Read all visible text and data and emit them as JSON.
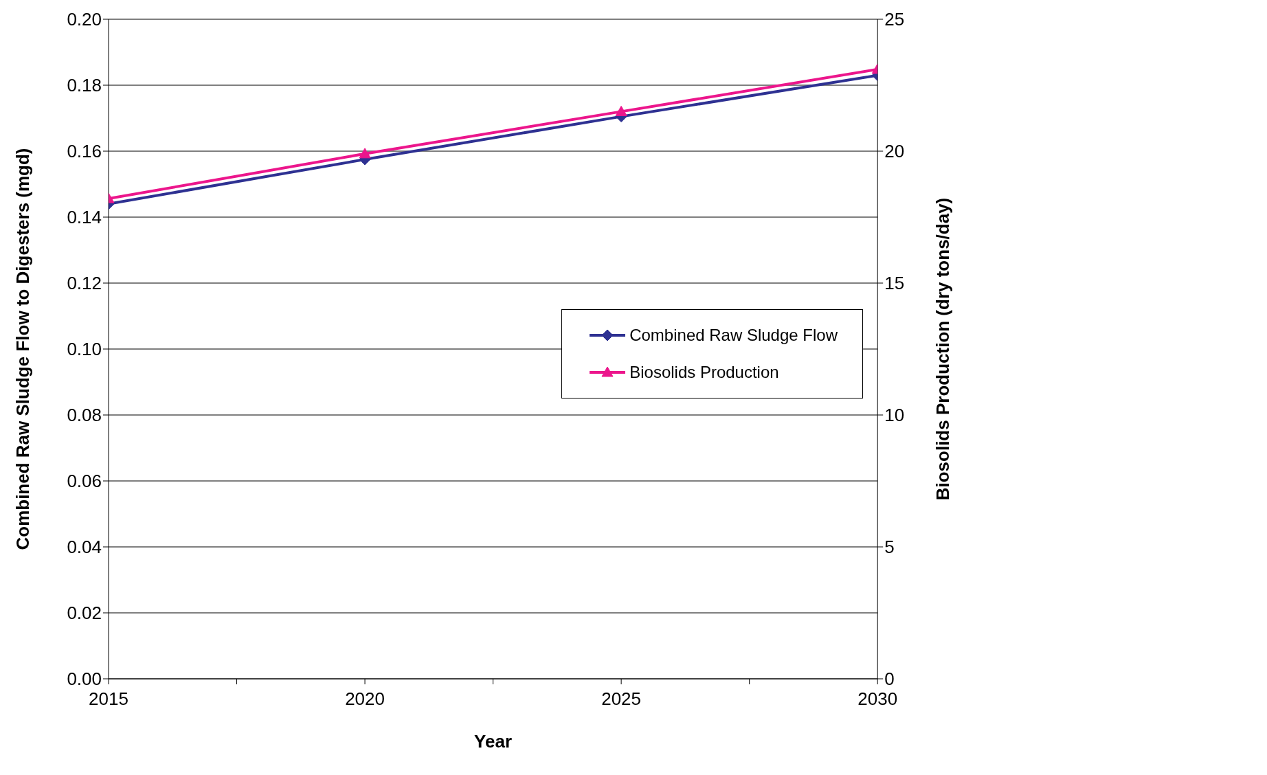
{
  "chart_data": {
    "type": "line",
    "xlabel": "Year",
    "ylabel": "Combined Raw Sludge Flow to Digesters (mgd)",
    "y2label": "Biosolids Production (dry tons/day)",
    "x": [
      2015,
      2020,
      2025,
      2030
    ],
    "series": [
      {
        "name": "Combined Raw Sludge Flow",
        "color": "#2e3192",
        "values": [
          0.144,
          0.1575,
          0.1705,
          0.183
        ],
        "marker": "diamond"
      },
      {
        "name": "Biosolids Production",
        "color": "#ec168c",
        "values": [
          18.2,
          19.9,
          21.5,
          23.1
        ],
        "axis": "y2",
        "marker": "triangle"
      }
    ],
    "xlim": [
      2015,
      2030
    ],
    "xticks": [
      2015,
      {
        "value": 2017.5,
        "label": null
      },
      2020,
      {
        "value": 2022.5,
        "label": null
      },
      2025,
      {
        "value": 2027.5,
        "label": null
      },
      2030
    ],
    "ylim": [
      0,
      0.2
    ],
    "yticks": [
      {
        "value": 0,
        "label": "0.00"
      },
      {
        "value": 0.02,
        "label": "0.02"
      },
      {
        "value": 0.04,
        "label": "0.04"
      },
      {
        "value": 0.06,
        "label": "0.06"
      },
      {
        "value": 0.08,
        "label": "0.08"
      },
      {
        "value": 0.1,
        "label": "0.10"
      },
      {
        "value": 0.12,
        "label": "0.12"
      },
      {
        "value": 0.14,
        "label": "0.14"
      },
      {
        "value": 0.16,
        "label": "0.16"
      },
      {
        "value": 0.18,
        "label": "0.18"
      },
      {
        "value": 0.2,
        "label": "0.20"
      }
    ],
    "y2lim": [
      0,
      25
    ],
    "y2ticks": [
      0,
      5,
      10,
      15,
      20,
      25
    ],
    "grid": "y",
    "legend": "right",
    "line_style": "solid"
  }
}
